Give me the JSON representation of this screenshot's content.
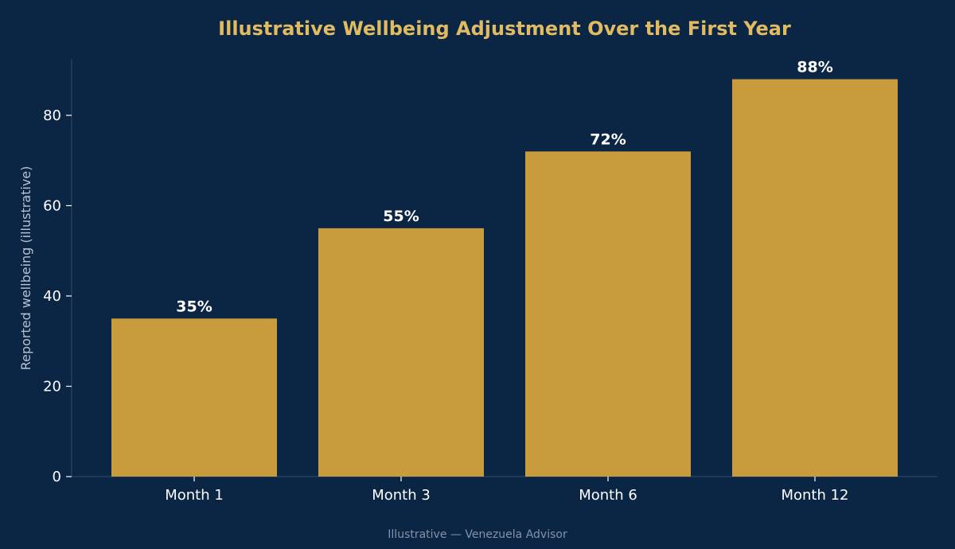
{
  "colors": {
    "background": "#0b2545",
    "bar": "#c89b3c",
    "title": "#e0bb62",
    "axis": "#2c4563",
    "tick_text": "#ffffff",
    "ylabel": "#b7c2d0",
    "value_label": "#ffffff",
    "footer": "#8394a8"
  },
  "footer": "Illustrative — Venezuela Advisor",
  "chart_data": {
    "type": "bar",
    "title": "Illustrative Wellbeing Adjustment Over the First Year",
    "xlabel": "",
    "ylabel": "Reported wellbeing (illustrative)",
    "categories": [
      "Month 1",
      "Month 3",
      "Month 6",
      "Month 12"
    ],
    "values": [
      35,
      55,
      72,
      88
    ],
    "value_labels": [
      "35%",
      "55%",
      "72%",
      "88%"
    ],
    "ylim": [
      0,
      92.5
    ],
    "yticks": [
      0,
      20,
      40,
      60,
      80
    ],
    "grid": false,
    "legend": "none"
  }
}
